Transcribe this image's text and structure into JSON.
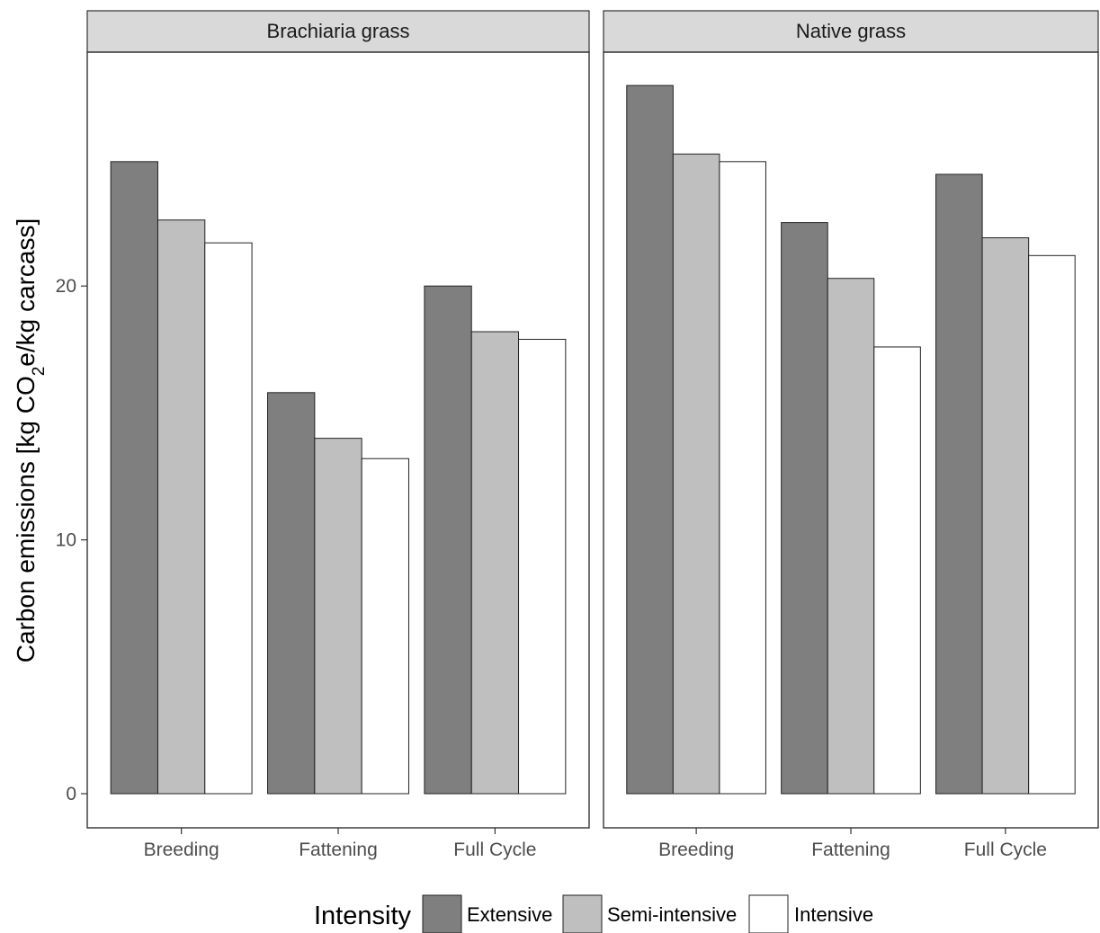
{
  "chart_data": {
    "type": "bar",
    "ylabel": "Carbon emissions [kg CO₂e/kg carcass]",
    "ylim": [
      0,
      30
    ],
    "y_ticks": [
      0,
      10,
      20
    ],
    "grid": false,
    "legend": {
      "title": "Intensity",
      "position": "bottom",
      "entries": [
        "Extensive",
        "Semi-intensive",
        "Intensive"
      ]
    },
    "categories": [
      "Breeding",
      "Fattening",
      "Full Cycle"
    ],
    "colors": {
      "Extensive": "#7f7f7f",
      "Semi-intensive": "#bfbfbf",
      "Intensive": "#ffffff",
      "strip": "#d9d9d9"
    },
    "panels": [
      {
        "title": "Brachiaria grass",
        "series": [
          {
            "name": "Extensive",
            "values": [
              24.9,
              15.8,
              20.0
            ]
          },
          {
            "name": "Semi-intensive",
            "values": [
              22.6,
              14.0,
              18.2
            ]
          },
          {
            "name": "Intensive",
            "values": [
              21.7,
              13.2,
              17.9
            ]
          }
        ]
      },
      {
        "title": "Native grass",
        "series": [
          {
            "name": "Extensive",
            "values": [
              27.9,
              22.5,
              24.4
            ]
          },
          {
            "name": "Semi-intensive",
            "values": [
              25.2,
              20.3,
              21.9
            ]
          },
          {
            "name": "Intensive",
            "values": [
              24.9,
              17.6,
              21.2
            ]
          }
        ]
      }
    ]
  }
}
